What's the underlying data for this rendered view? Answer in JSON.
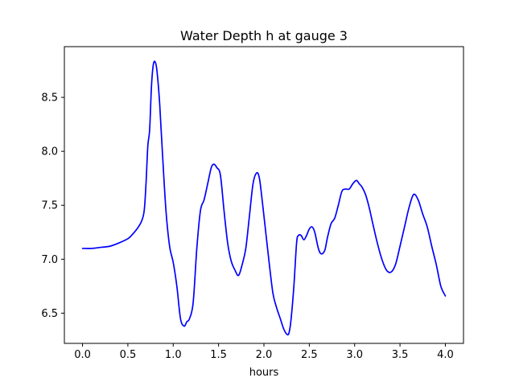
{
  "chart_data": {
    "type": "line",
    "title": "Water Depth h at gauge 3",
    "xlabel": "hours",
    "ylabel": "",
    "xlim": [
      -0.2,
      4.2
    ],
    "ylim": [
      6.22,
      8.97
    ],
    "xticks": [
      0.0,
      0.5,
      1.0,
      1.5,
      2.0,
      2.5,
      3.0,
      3.5,
      4.0
    ],
    "xtick_labels": [
      "0.0",
      "0.5",
      "1.0",
      "1.5",
      "2.0",
      "2.5",
      "3.0",
      "3.5",
      "4.0"
    ],
    "yticks": [
      6.5,
      7.0,
      7.5,
      8.0,
      8.5
    ],
    "ytick_labels": [
      "6.5",
      "7.0",
      "7.5",
      "8.0",
      "8.5"
    ],
    "grid": false,
    "series": [
      {
        "color": "#0000ff",
        "x": [
          0.0,
          0.1,
          0.2,
          0.3,
          0.4,
          0.5,
          0.55,
          0.6,
          0.65,
          0.68,
          0.7,
          0.72,
          0.74,
          0.76,
          0.78,
          0.8,
          0.82,
          0.85,
          0.88,
          0.92,
          0.96,
          1.0,
          1.04,
          1.08,
          1.12,
          1.15,
          1.18,
          1.22,
          1.26,
          1.3,
          1.34,
          1.38,
          1.42,
          1.45,
          1.48,
          1.52,
          1.56,
          1.6,
          1.64,
          1.68,
          1.72,
          1.76,
          1.8,
          1.84,
          1.88,
          1.92,
          1.95,
          1.98,
          2.02,
          2.06,
          2.1,
          2.14,
          2.18,
          2.22,
          2.26,
          2.28,
          2.3,
          2.33,
          2.36,
          2.38,
          2.41,
          2.44,
          2.47,
          2.5,
          2.53,
          2.56,
          2.6,
          2.63,
          2.67,
          2.7,
          2.74,
          2.78,
          2.82,
          2.86,
          2.9,
          2.94,
          2.98,
          3.02,
          3.05,
          3.08,
          3.12,
          3.16,
          3.2,
          3.25,
          3.3,
          3.35,
          3.4,
          3.45,
          3.5,
          3.55,
          3.6,
          3.65,
          3.7,
          3.75,
          3.8,
          3.85,
          3.9,
          3.95,
          4.0
        ],
        "values": [
          7.1,
          7.1,
          7.11,
          7.12,
          7.15,
          7.19,
          7.23,
          7.28,
          7.35,
          7.45,
          7.7,
          8.05,
          8.2,
          8.6,
          8.8,
          8.83,
          8.75,
          8.45,
          8.0,
          7.45,
          7.12,
          6.97,
          6.75,
          6.45,
          6.38,
          6.42,
          6.45,
          6.6,
          7.1,
          7.45,
          7.55,
          7.7,
          7.85,
          7.88,
          7.85,
          7.78,
          7.45,
          7.15,
          6.98,
          6.9,
          6.85,
          6.95,
          7.1,
          7.4,
          7.7,
          7.8,
          7.75,
          7.55,
          7.25,
          6.95,
          6.68,
          6.55,
          6.45,
          6.35,
          6.3,
          6.33,
          6.45,
          6.75,
          7.15,
          7.22,
          7.22,
          7.18,
          7.22,
          7.28,
          7.3,
          7.25,
          7.1,
          7.05,
          7.08,
          7.2,
          7.33,
          7.38,
          7.5,
          7.63,
          7.65,
          7.65,
          7.7,
          7.73,
          7.7,
          7.67,
          7.6,
          7.48,
          7.33,
          7.15,
          7.0,
          6.9,
          6.88,
          6.95,
          7.12,
          7.3,
          7.48,
          7.6,
          7.55,
          7.42,
          7.3,
          7.12,
          6.95,
          6.75,
          6.66
        ]
      }
    ]
  }
}
